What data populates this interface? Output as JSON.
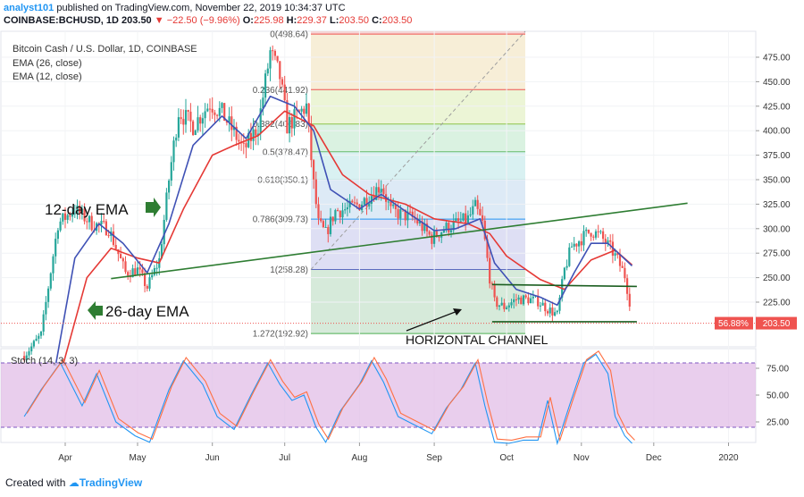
{
  "header": {
    "author": "analyst101",
    "published_text": "published on TradingView.com, November 22, 2019 10:34:37 UTC",
    "symbol": "COINBASE:BCHUSD, 1D",
    "last": "203.50",
    "change": "−22.50 (−9.96%)",
    "o_label": "O:",
    "o_value": "225.98",
    "h_label": "H:",
    "h_value": "229.37",
    "l_label": "L:",
    "l_value": "203.50",
    "c_label": "C:",
    "c_value": "203.50"
  },
  "legend": {
    "title": "Bitcoin Cash / U.S. Dollar, 1D, COINBASE",
    "ema26": "EMA (26, close)",
    "ema12": "EMA (12, close)"
  },
  "annotations": {
    "ema12_label": "12-day EMA",
    "ema26_label": "26-day EMA",
    "channel_label": "HORIZONTAL CHANNEL"
  },
  "price_tag": {
    "pct": "56.88%",
    "price": "203.50"
  },
  "stoch": {
    "label": "Stoch (14, 3, 3)"
  },
  "footer": {
    "created_with": "Created with",
    "brand": "TradingView"
  },
  "colors": {
    "up": "#26a69a",
    "down": "#ef5350",
    "ema12": "#3f51b5",
    "ema26": "#e53935",
    "trend": "#2e7d32",
    "stoch_k": "#2196f3",
    "stoch_d": "#ff7043"
  },
  "chart_data": {
    "type": "candlestick",
    "price_axis": {
      "ticks": [
        475,
        450,
        425,
        400,
        375,
        350,
        325,
        300,
        275,
        250,
        225
      ]
    },
    "time_axis": {
      "ticks": [
        "Apr",
        "May",
        "Jun",
        "Jul",
        "Aug",
        "Sep",
        "Oct",
        "Nov",
        "Dec",
        "2020"
      ]
    },
    "fibonacci": [
      {
        "label": "1.272(192.92)",
        "ratio": 1.272,
        "value": 192.92
      },
      {
        "label": "1(258.28)",
        "ratio": 1,
        "value": 258.28
      },
      {
        "label": "0.786(309.73)",
        "ratio": 0.786,
        "value": 309.73
      },
      {
        "label": "0.618(350.1)",
        "ratio": 0.618,
        "value": 350.1
      },
      {
        "label": "0.5(378.47)",
        "ratio": 0.5,
        "value": 378.47
      },
      {
        "label": "0.382(406.83)",
        "ratio": 0.382,
        "value": 406.83
      },
      {
        "label": "0.236(441.92)",
        "ratio": 0.236,
        "value": 441.92
      },
      {
        "label": "0(498.64)",
        "ratio": 0,
        "value": 498.64
      }
    ],
    "close_path": [
      [
        "2019-03-15",
        170
      ],
      [
        "2019-03-22",
        192
      ],
      [
        "2019-03-29",
        305
      ],
      [
        "2019-04-05",
        320
      ],
      [
        "2019-04-12",
        305
      ],
      [
        "2019-04-19",
        300
      ],
      [
        "2019-04-26",
        255
      ],
      [
        "2019-05-01",
        258
      ],
      [
        "2019-05-05",
        240
      ],
      [
        "2019-05-10",
        268
      ],
      [
        "2019-05-14",
        350
      ],
      [
        "2019-05-18",
        420
      ],
      [
        "2019-05-24",
        405
      ],
      [
        "2019-05-31",
        428
      ],
      [
        "2019-06-05",
        418
      ],
      [
        "2019-06-10",
        398
      ],
      [
        "2019-06-14",
        380
      ],
      [
        "2019-06-20",
        405
      ],
      [
        "2019-06-25",
        480
      ],
      [
        "2019-06-29",
        455
      ],
      [
        "2019-07-02",
        405
      ],
      [
        "2019-07-06",
        415
      ],
      [
        "2019-07-10",
        425
      ],
      [
        "2019-07-13",
        345
      ],
      [
        "2019-07-15",
        305
      ],
      [
        "2019-07-18",
        295
      ],
      [
        "2019-07-22",
        318
      ],
      [
        "2019-07-27",
        320
      ],
      [
        "2019-08-01",
        325
      ],
      [
        "2019-08-06",
        335
      ],
      [
        "2019-08-10",
        345
      ],
      [
        "2019-08-14",
        318
      ],
      [
        "2019-08-18",
        315
      ],
      [
        "2019-08-24",
        310
      ],
      [
        "2019-08-31",
        290
      ],
      [
        "2019-09-05",
        300
      ],
      [
        "2019-09-10",
        305
      ],
      [
        "2019-09-15",
        310
      ],
      [
        "2019-09-18",
        322
      ],
      [
        "2019-09-21",
        305
      ],
      [
        "2019-09-24",
        250
      ],
      [
        "2019-09-26",
        225
      ],
      [
        "2019-09-30",
        220
      ],
      [
        "2019-10-05",
        228
      ],
      [
        "2019-10-10",
        228
      ],
      [
        "2019-10-14",
        226
      ],
      [
        "2019-10-18",
        218
      ],
      [
        "2019-10-22",
        212
      ],
      [
        "2019-10-25",
        258
      ],
      [
        "2019-10-28",
        282
      ],
      [
        "2019-11-01",
        290
      ],
      [
        "2019-11-05",
        298
      ],
      [
        "2019-11-09",
        292
      ],
      [
        "2019-11-13",
        280
      ],
      [
        "2019-11-16",
        268
      ],
      [
        "2019-11-19",
        252
      ],
      [
        "2019-11-21",
        226
      ],
      [
        "2019-11-22",
        203.5
      ]
    ],
    "stoch_path": [
      [
        "2019-03-15",
        30
      ],
      [
        "2019-03-22",
        55
      ],
      [
        "2019-03-30",
        80
      ],
      [
        "2019-04-08",
        40
      ],
      [
        "2019-04-14",
        70
      ],
      [
        "2019-04-22",
        25
      ],
      [
        "2019-04-30",
        12
      ],
      [
        "2019-05-06",
        6
      ],
      [
        "2019-05-14",
        55
      ],
      [
        "2019-05-20",
        82
      ],
      [
        "2019-05-28",
        60
      ],
      [
        "2019-06-03",
        30
      ],
      [
        "2019-06-10",
        18
      ],
      [
        "2019-06-17",
        50
      ],
      [
        "2019-06-24",
        80
      ],
      [
        "2019-06-29",
        60
      ],
      [
        "2019-07-04",
        45
      ],
      [
        "2019-07-09",
        50
      ],
      [
        "2019-07-14",
        20
      ],
      [
        "2019-07-18",
        6
      ],
      [
        "2019-07-24",
        35
      ],
      [
        "2019-08-01",
        60
      ],
      [
        "2019-08-06",
        82
      ],
      [
        "2019-08-11",
        62
      ],
      [
        "2019-08-17",
        30
      ],
      [
        "2019-08-24",
        22
      ],
      [
        "2019-08-31",
        14
      ],
      [
        "2019-09-06",
        38
      ],
      [
        "2019-09-12",
        55
      ],
      [
        "2019-09-18",
        80
      ],
      [
        "2019-09-22",
        40
      ],
      [
        "2019-09-26",
        6
      ],
      [
        "2019-10-02",
        5
      ],
      [
        "2019-10-08",
        8
      ],
      [
        "2019-10-14",
        8
      ],
      [
        "2019-10-18",
        45
      ],
      [
        "2019-10-22",
        5
      ],
      [
        "2019-10-27",
        40
      ],
      [
        "2019-11-02",
        80
      ],
      [
        "2019-11-07",
        88
      ],
      [
        "2019-11-12",
        70
      ],
      [
        "2019-11-15",
        30
      ],
      [
        "2019-11-19",
        12
      ],
      [
        "2019-11-22",
        5
      ]
    ],
    "ema12_path": [
      [
        "2019-03-28",
        160
      ],
      [
        "2019-04-05",
        270
      ],
      [
        "2019-04-15",
        305
      ],
      [
        "2019-04-25",
        285
      ],
      [
        "2019-05-05",
        255
      ],
      [
        "2019-05-14",
        305
      ],
      [
        "2019-05-24",
        385
      ],
      [
        "2019-06-05",
        415
      ],
      [
        "2019-06-15",
        392
      ],
      [
        "2019-06-25",
        435
      ],
      [
        "2019-07-05",
        425
      ],
      [
        "2019-07-13",
        400
      ],
      [
        "2019-07-20",
        340
      ],
      [
        "2019-08-01",
        320
      ],
      [
        "2019-08-10",
        335
      ],
      [
        "2019-08-20",
        318
      ],
      [
        "2019-09-01",
        298
      ],
      [
        "2019-09-10",
        300
      ],
      [
        "2019-09-20",
        310
      ],
      [
        "2019-09-26",
        265
      ],
      [
        "2019-10-05",
        238
      ],
      [
        "2019-10-15",
        230
      ],
      [
        "2019-10-22",
        222
      ],
      [
        "2019-10-29",
        255
      ],
      [
        "2019-11-05",
        285
      ],
      [
        "2019-11-12",
        285
      ],
      [
        "2019-11-22",
        262
      ]
    ],
    "ema26_path": [
      [
        "2019-03-31",
        160
      ],
      [
        "2019-04-10",
        250
      ],
      [
        "2019-04-20",
        280
      ],
      [
        "2019-05-01",
        270
      ],
      [
        "2019-05-10",
        265
      ],
      [
        "2019-05-20",
        320
      ],
      [
        "2019-06-01",
        375
      ],
      [
        "2019-06-10",
        385
      ],
      [
        "2019-06-20",
        395
      ],
      [
        "2019-07-01",
        420
      ],
      [
        "2019-07-13",
        405
      ],
      [
        "2019-07-25",
        355
      ],
      [
        "2019-08-05",
        335
      ],
      [
        "2019-08-20",
        325
      ],
      [
        "2019-09-01",
        310
      ],
      [
        "2019-09-15",
        305
      ],
      [
        "2019-09-24",
        295
      ],
      [
        "2019-10-01",
        272
      ],
      [
        "2019-10-15",
        248
      ],
      [
        "2019-10-25",
        238
      ],
      [
        "2019-11-05",
        268
      ],
      [
        "2019-11-15",
        278
      ],
      [
        "2019-11-22",
        263
      ]
    ],
    "trendline": [
      [
        "2019-04-20",
        249
      ],
      [
        "2019-12-15",
        326
      ]
    ],
    "channel_top": [
      [
        "2019-09-25",
        243
      ],
      [
        "2019-11-24",
        241
      ]
    ],
    "channel_bottom": [
      [
        "2019-09-25",
        205
      ],
      [
        "2019-11-24",
        205
      ]
    ]
  }
}
